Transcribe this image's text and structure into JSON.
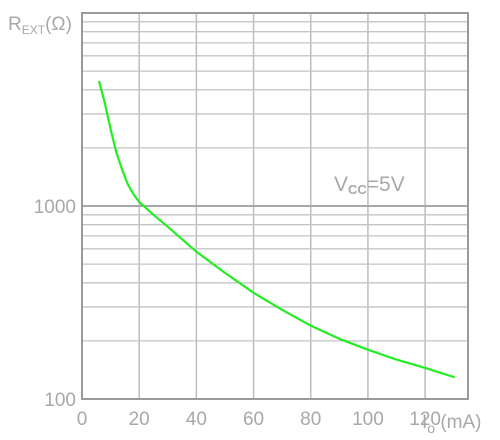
{
  "chart_data": {
    "type": "line",
    "title": "",
    "ylabel": {
      "main": "R",
      "sub": "EXT",
      "unit": "(Ω)"
    },
    "xlabel": {
      "main": "I",
      "sub": "o",
      "unit": " (mA)"
    },
    "annotation": {
      "main": "V",
      "sub": "CC",
      "rest": "=5V"
    },
    "x_axis": {
      "scale": "linear",
      "range": [
        0,
        135
      ],
      "ticks": [
        0,
        20,
        40,
        60,
        80,
        100,
        120
      ],
      "tick_labels": [
        "0",
        "20",
        "40",
        "60",
        "80",
        "100",
        "120"
      ]
    },
    "y_axis": {
      "scale": "log",
      "range": [
        100,
        10000
      ],
      "tick_labels": [
        {
          "value": 100,
          "label": "100"
        },
        {
          "value": 1000,
          "label": "1000"
        }
      ]
    },
    "grid": true,
    "series": [
      {
        "color": "#22ee22",
        "x": [
          6,
          8,
          10,
          12,
          14,
          16,
          18,
          20,
          25,
          30,
          40,
          50,
          60,
          70,
          80,
          90,
          100,
          110,
          120,
          130
        ],
        "y": [
          4400,
          3400,
          2500,
          1900,
          1550,
          1300,
          1150,
          1050,
          900,
          780,
          580,
          450,
          355,
          290,
          240,
          205,
          180,
          160,
          145,
          130
        ]
      }
    ]
  }
}
